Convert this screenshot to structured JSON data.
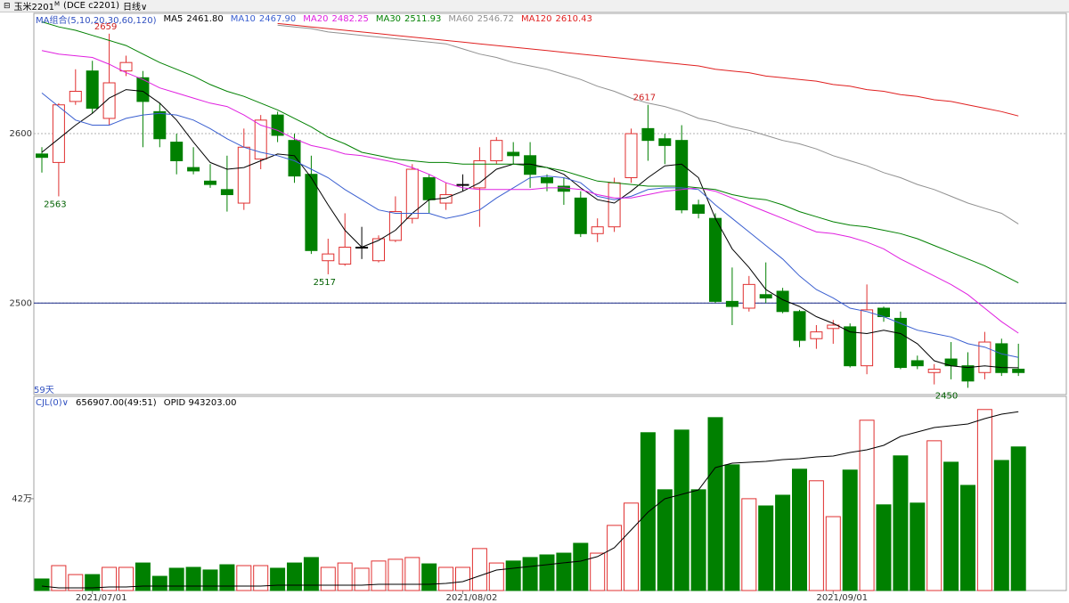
{
  "chart_data": {
    "type": "candlestick",
    "header": {
      "symbol": "玉米2201",
      "sup": "M",
      "exchange": "(DCE c2201)",
      "period": "日线"
    },
    "ma_group_label": "MA组合(5,10,20,30,60,120)",
    "days_label": "59天",
    "categories": [
      null,
      null,
      null,
      "2021/07/01",
      null,
      null,
      null,
      null,
      null,
      null,
      null,
      null,
      null,
      null,
      null,
      null,
      null,
      null,
      null,
      null,
      null,
      null,
      null,
      null,
      null,
      "2021/08/02",
      null,
      null,
      null,
      null,
      null,
      null,
      null,
      null,
      null,
      null,
      null,
      null,
      null,
      null,
      null,
      null,
      null,
      null,
      null,
      null,
      null,
      "2021/09/01",
      null,
      null,
      null,
      null,
      null,
      null,
      null,
      null,
      null,
      null,
      null
    ],
    "ylim": [
      2446,
      2671
    ],
    "yticks": [
      2500,
      2600
    ],
    "grid": true,
    "reference_line": 2500,
    "up_color": "#e03030",
    "down_color": "#008000",
    "candles": {
      "open": [
        2588,
        2583,
        2619,
        2637,
        2609,
        2637,
        2633,
        2613,
        2595,
        2580,
        2572,
        2567,
        2559,
        2585,
        2611,
        2596,
        2576,
        2525,
        2523,
        2533,
        2525,
        2537,
        2550,
        2574,
        2559,
        2570,
        2568,
        2584,
        2589,
        2587,
        2574,
        2569,
        2562,
        2541,
        2545,
        2574,
        2603,
        2597,
        2596,
        2558,
        2550,
        2501,
        2497,
        2505,
        2507,
        2495,
        2479,
        2485,
        2486,
        2463,
        2497,
        2491,
        2466,
        2459,
        2467,
        2463,
        2459,
        2476,
        2461
      ],
      "high": [
        2592,
        2618,
        2638,
        2643,
        2659,
        2646,
        2637,
        2618,
        2600,
        2592,
        2582,
        2587,
        2603,
        2611,
        2613,
        2600,
        2587,
        2538,
        2553,
        2545,
        2540,
        2563,
        2582,
        2576,
        2571,
        2576,
        2592,
        2598,
        2595,
        2595,
        2576,
        2574,
        2566,
        2550,
        2574,
        2603,
        2617,
        2600,
        2605,
        2561,
        2553,
        2521,
        2516,
        2524,
        2509,
        2496,
        2487,
        2490,
        2488,
        2511,
        2498,
        2495,
        2469,
        2464,
        2477,
        2471,
        2483,
        2479,
        2476
      ],
      "low": [
        2577,
        2563,
        2617,
        2612,
        2605,
        2634,
        2592,
        2592,
        2576,
        2576,
        2568,
        2554,
        2555,
        2579,
        2595,
        2571,
        2529,
        2517,
        2522,
        2526,
        2524,
        2536,
        2547,
        2553,
        2555,
        2566,
        2545,
        2582,
        2582,
        2568,
        2566,
        2558,
        2539,
        2536,
        2542,
        2571,
        2584,
        2582,
        2553,
        2550,
        2500,
        2487,
        2495,
        2500,
        2494,
        2474,
        2473,
        2476,
        2462,
        2458,
        2489,
        2461,
        2461,
        2452,
        2455,
        2450,
        2455,
        2457,
        2457
      ],
      "close": [
        2586,
        2617,
        2625,
        2615,
        2630,
        2642,
        2619,
        2597,
        2584,
        2578,
        2570,
        2564,
        2592,
        2608,
        2599,
        2575,
        2531,
        2529,
        2533,
        2533,
        2538,
        2554,
        2579,
        2561,
        2564,
        2570,
        2584,
        2596,
        2587,
        2576,
        2571,
        2566,
        2541,
        2545,
        2571,
        2600,
        2596,
        2593,
        2555,
        2553,
        2501,
        2498,
        2511,
        2503,
        2495,
        2478,
        2483,
        2487,
        2463,
        2496,
        2492,
        2462,
        2463,
        2461,
        2463,
        2454,
        2477,
        2459,
        2459
      ]
    },
    "series": [
      {
        "name": "MA5",
        "color": "#000000",
        "legend_value": "2461.80",
        "values": [
          2589,
          2597,
          2605,
          2612,
          2621,
          2626,
          2625,
          2618,
          2608,
          2595,
          2583,
          2579,
          2580,
          2584,
          2588,
          2587,
          2574,
          2558,
          2543,
          2533,
          2537,
          2543,
          2553,
          2561,
          2562,
          2566,
          2571,
          2579,
          2582,
          2582,
          2580,
          2576,
          2568,
          2561,
          2559,
          2566,
          2574,
          2581,
          2582,
          2574,
          2550,
          2532,
          2521,
          2508,
          2502,
          2498,
          2492,
          2488,
          2483,
          2482,
          2484,
          2482,
          2476,
          2466,
          2463,
          2462,
          2463,
          2462,
          2461.8
        ]
      },
      {
        "name": "MA10",
        "color": "#3a5fd0",
        "legend_value": "2467.90",
        "values": [
          2624,
          2616,
          2608,
          2605,
          2605,
          2609,
          2611,
          2612,
          2611,
          2608,
          2603,
          2597,
          2592,
          2589,
          2587,
          2584,
          2579,
          2574,
          2567,
          2561,
          2555,
          2553,
          2553,
          2553,
          2550,
          2552,
          2555,
          2562,
          2568,
          2574,
          2575,
          2574,
          2571,
          2563,
          2561,
          2563,
          2567,
          2568,
          2568,
          2567,
          2558,
          2550,
          2542,
          2534,
          2526,
          2516,
          2508,
          2503,
          2497,
          2495,
          2492,
          2488,
          2484,
          2482,
          2480,
          2476,
          2474,
          2470,
          2467.9
        ]
      },
      {
        "name": "MA20",
        "color": "#e020e0",
        "legend_value": "2482.25",
        "values": [
          2649,
          2647,
          2646,
          2645,
          2641,
          2636,
          2632,
          2627,
          2624,
          2621,
          2618,
          2616,
          2611,
          2605,
          2602,
          2597,
          2593,
          2591,
          2588,
          2587,
          2585,
          2583,
          2580,
          2576,
          2571,
          2568,
          2567,
          2567,
          2567,
          2567,
          2568,
          2568,
          2567,
          2564,
          2562,
          2562,
          2564,
          2566,
          2567,
          2568,
          2566,
          2562,
          2558,
          2554,
          2550,
          2546,
          2542,
          2541,
          2539,
          2536,
          2532,
          2526,
          2521,
          2516,
          2511,
          2505,
          2497,
          2489,
          2482.25
        ]
      },
      {
        "name": "MA30",
        "color": "#008000",
        "legend_value": "2511.93",
        "values": [
          2666,
          2663,
          2661,
          2658,
          2655,
          2652,
          2647,
          2642,
          2638,
          2634,
          2629,
          2625,
          2622,
          2618,
          2614,
          2609,
          2604,
          2598,
          2594,
          2589,
          2587,
          2585,
          2584,
          2583,
          2583,
          2582,
          2582,
          2582,
          2582,
          2581,
          2580,
          2578,
          2575,
          2572,
          2571,
          2570,
          2569,
          2569,
          2569,
          2568,
          2567,
          2564,
          2562,
          2561,
          2558,
          2554,
          2551,
          2548,
          2546,
          2545,
          2543,
          2541,
          2538,
          2534,
          2530,
          2526,
          2522,
          2517,
          2511.93
        ]
      },
      {
        "name": "MA60",
        "color": "#909090",
        "legend_value": "2546.72",
        "values": [
          null,
          null,
          null,
          null,
          null,
          null,
          null,
          null,
          null,
          null,
          null,
          null,
          null,
          null,
          2664,
          2663,
          2662,
          2660,
          2659,
          2658,
          2657,
          2656,
          2655,
          2654,
          2653,
          2650,
          2647,
          2645,
          2642,
          2640,
          2638,
          2635,
          2632,
          2628,
          2625,
          2621,
          2618,
          2616,
          2613,
          2609,
          2607,
          2604,
          2602,
          2599,
          2596,
          2594,
          2591,
          2587,
          2584,
          2581,
          2577,
          2574,
          2570,
          2567,
          2563,
          2559,
          2556,
          2553,
          2546.72
        ]
      },
      {
        "name": "MA120",
        "color": "#e02020",
        "legend_value": "2610.43",
        "values": [
          null,
          null,
          null,
          null,
          null,
          null,
          null,
          null,
          null,
          null,
          null,
          null,
          null,
          null,
          2665,
          2664,
          2663,
          2662,
          2661,
          2660,
          2659,
          2658,
          2657,
          2656,
          2655,
          2654,
          2653,
          2652,
          2651,
          2650,
          2649,
          2648,
          2647,
          2646,
          2645,
          2644,
          2643,
          2642,
          2641,
          2640,
          2638,
          2637,
          2636,
          2634,
          2633,
          2632,
          2631,
          2629,
          2628,
          2626,
          2625,
          2623,
          2622,
          2620,
          2619,
          2617,
          2615,
          2613,
          2610.43
        ]
      }
    ],
    "volume": {
      "name": "CJL(0)",
      "legend_value": "656907.00(49:51)",
      "ylim": [
        0,
        880000
      ],
      "yticks": [
        {
          "value": 420000,
          "label": "42万"
        }
      ],
      "values": [
        53000,
        114000,
        73000,
        73000,
        106000,
        106000,
        126000,
        65000,
        102000,
        106000,
        94000,
        118000,
        114000,
        114000,
        102000,
        126000,
        151000,
        106000,
        126000,
        102000,
        135000,
        143000,
        151000,
        122000,
        106000,
        106000,
        192000,
        126000,
        135000,
        151000,
        163000,
        171000,
        216000,
        171000,
        298000,
        400000,
        722000,
        461000,
        734000,
        461000,
        791000,
        575000,
        420000,
        387000,
        436000,
        555000,
        502000,
        338000,
        551000,
        779000,
        392000,
        616000,
        400000,
        685000,
        587000,
        481000,
        828000,
        595000,
        656907
      ]
    },
    "open_interest": {
      "name": "OPID",
      "legend_value": "943203.00",
      "color": "#000000",
      "y2lim": [
        395000,
        985000
      ],
      "values": [
        408700,
        403200,
        403200,
        403200,
        405900,
        405900,
        408700,
        408700,
        408700,
        408700,
        408700,
        408700,
        408700,
        408700,
        411400,
        411400,
        411400,
        411400,
        411400,
        411400,
        414100,
        414100,
        414100,
        414100,
        416900,
        422300,
        440000,
        457800,
        463300,
        468700,
        474200,
        480000,
        485100,
        499000,
        526100,
        580700,
        635400,
        676300,
        690000,
        703700,
        772000,
        785600,
        788300,
        791100,
        796600,
        799300,
        804800,
        807500,
        818400,
        826600,
        840200,
        867600,
        881200,
        894900,
        900300,
        905800,
        922200,
        935800,
        943203
      ]
    }
  }
}
